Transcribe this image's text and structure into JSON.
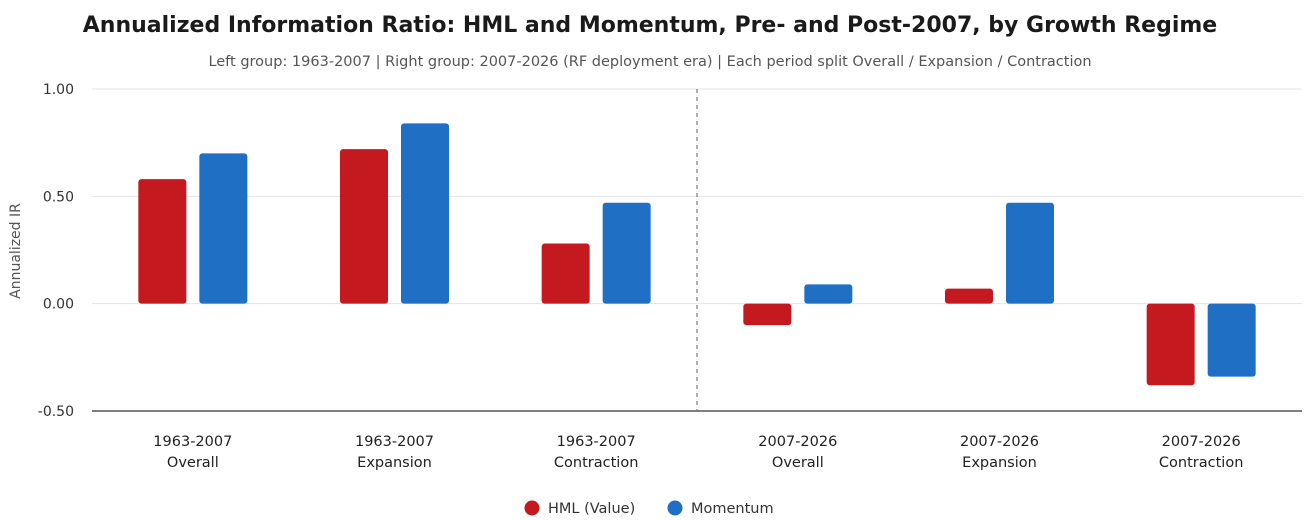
{
  "chart_data": {
    "type": "bar",
    "title": "Annualized Information Ratio: HML and Momentum, Pre- and Post-2007, by Growth Regime",
    "subtitle": "Left group: 1963-2007 | Right group: 2007-2026 (RF deployment era) | Each period split Overall / Expansion / Contraction",
    "ylabel": "Annualized IR",
    "ylim": [
      -0.5,
      1.0
    ],
    "yticks": [
      1.0,
      0.5,
      0.0,
      -0.5
    ],
    "ytick_labels": [
      "1.00",
      "0.50",
      "0.00",
      "-0.50"
    ],
    "categories": [
      [
        "1963-2007",
        "Overall"
      ],
      [
        "1963-2007",
        "Expansion"
      ],
      [
        "1963-2007",
        "Contraction"
      ],
      [
        "2007-2026",
        "Overall"
      ],
      [
        "2007-2026",
        "Expansion"
      ],
      [
        "2007-2026",
        "Contraction"
      ]
    ],
    "series": [
      {
        "name": "HML (Value)",
        "color": "#c41a1f",
        "values": [
          0.58,
          0.72,
          0.28,
          -0.1,
          0.07,
          -0.38
        ]
      },
      {
        "name": "Momentum",
        "color": "#1f6fc5",
        "values": [
          0.7,
          0.84,
          0.47,
          0.09,
          0.47,
          -0.34
        ]
      }
    ],
    "group_divider": "between 1963-2007 Contraction and 2007-2026 Overall (dashed)",
    "grid": true,
    "legend_position": "bottom-center"
  }
}
